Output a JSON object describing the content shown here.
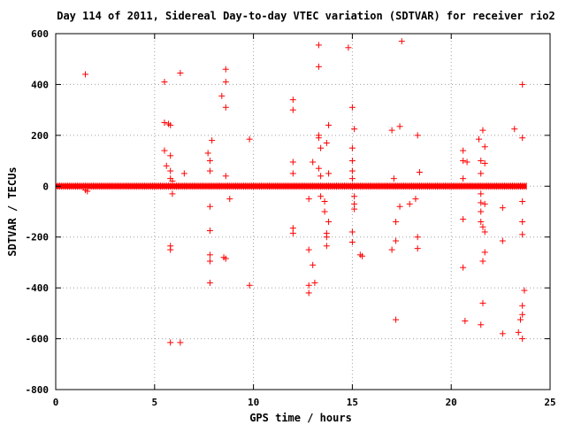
{
  "chart_data": {
    "type": "scatter",
    "title": "Day 114 of 2011, Sidereal Day-to-day VTEC variation (SDTVAR) for receiver rio2",
    "xlabel": "GPS time / hours",
    "ylabel": "SDTVAR / TECUs",
    "xlim": [
      0,
      25
    ],
    "ylim": [
      -800,
      600
    ],
    "x_ticks": [
      0,
      5,
      10,
      15,
      20,
      25
    ],
    "y_ticks": [
      -800,
      -600,
      -400,
      -200,
      0,
      200,
      400,
      600
    ],
    "grid": true,
    "marker": "plus",
    "colors": {
      "series": "#ff0000",
      "grid": "#a0a0a0",
      "axis": "#000000"
    },
    "baseline_band": {
      "x_start": 0,
      "x_end": 23.8,
      "y_min": -10,
      "y_max": 10
    },
    "series": [
      {
        "values": [
          [
            1.5,
            440
          ],
          [
            1.5,
            -15
          ],
          [
            1.6,
            -20
          ],
          [
            5.5,
            410
          ],
          [
            5.5,
            250
          ],
          [
            5.5,
            140
          ],
          [
            5.6,
            80
          ],
          [
            5.7,
            245
          ],
          [
            5.8,
            240
          ],
          [
            5.8,
            120
          ],
          [
            5.8,
            60
          ],
          [
            5.8,
            30
          ],
          [
            5.9,
            20
          ],
          [
            5.9,
            -30
          ],
          [
            5.8,
            -235
          ],
          [
            5.8,
            -250
          ],
          [
            5.8,
            -615
          ],
          [
            6.3,
            445
          ],
          [
            6.3,
            -615
          ],
          [
            6.5,
            50
          ],
          [
            7.7,
            130
          ],
          [
            7.8,
            100
          ],
          [
            7.8,
            60
          ],
          [
            7.9,
            180
          ],
          [
            7.8,
            -80
          ],
          [
            7.8,
            -175
          ],
          [
            7.8,
            -270
          ],
          [
            7.8,
            -295
          ],
          [
            7.8,
            -380
          ],
          [
            8.4,
            355
          ],
          [
            8.6,
            460
          ],
          [
            8.6,
            410
          ],
          [
            8.6,
            310
          ],
          [
            8.6,
            40
          ],
          [
            8.8,
            -50
          ],
          [
            8.5,
            -280
          ],
          [
            8.6,
            -285
          ],
          [
            9.8,
            185
          ],
          [
            9.8,
            -390
          ],
          [
            12.0,
            340
          ],
          [
            12.0,
            300
          ],
          [
            12.0,
            95
          ],
          [
            12.0,
            50
          ],
          [
            12.0,
            -165
          ],
          [
            12.0,
            -185
          ],
          [
            12.8,
            -50
          ],
          [
            12.8,
            -250
          ],
          [
            12.8,
            -390
          ],
          [
            12.8,
            -420
          ],
          [
            13.0,
            95
          ],
          [
            13.0,
            -310
          ],
          [
            13.1,
            -380
          ],
          [
            13.3,
            555
          ],
          [
            13.3,
            470
          ],
          [
            13.3,
            200
          ],
          [
            13.3,
            190
          ],
          [
            13.4,
            150
          ],
          [
            13.3,
            70
          ],
          [
            13.4,
            40
          ],
          [
            13.4,
            -40
          ],
          [
            13.6,
            -60
          ],
          [
            13.6,
            -100
          ],
          [
            13.8,
            240
          ],
          [
            13.7,
            170
          ],
          [
            13.8,
            50
          ],
          [
            13.8,
            -140
          ],
          [
            13.7,
            -185
          ],
          [
            13.7,
            -200
          ],
          [
            13.7,
            -235
          ],
          [
            14.8,
            545
          ],
          [
            15.0,
            310
          ],
          [
            15.1,
            225
          ],
          [
            15.0,
            150
          ],
          [
            15.0,
            100
          ],
          [
            15.0,
            60
          ],
          [
            15.0,
            30
          ],
          [
            15.1,
            -40
          ],
          [
            15.1,
            -70
          ],
          [
            15.1,
            -90
          ],
          [
            15.0,
            -180
          ],
          [
            15.0,
            -220
          ],
          [
            15.5,
            -275
          ],
          [
            15.4,
            -270
          ],
          [
            17.0,
            220
          ],
          [
            17.1,
            30
          ],
          [
            17.2,
            -140
          ],
          [
            17.0,
            -250
          ],
          [
            17.2,
            -215
          ],
          [
            17.2,
            -525
          ],
          [
            17.5,
            570
          ],
          [
            17.4,
            235
          ],
          [
            17.4,
            -80
          ],
          [
            17.9,
            -70
          ],
          [
            18.2,
            -50
          ],
          [
            18.3,
            200
          ],
          [
            18.4,
            55
          ],
          [
            18.3,
            -200
          ],
          [
            18.3,
            -245
          ],
          [
            20.6,
            140
          ],
          [
            20.6,
            100
          ],
          [
            20.6,
            30
          ],
          [
            20.6,
            -130
          ],
          [
            20.6,
            -320
          ],
          [
            20.7,
            -530
          ],
          [
            20.8,
            95
          ],
          [
            21.4,
            185
          ],
          [
            21.5,
            100
          ],
          [
            21.5,
            50
          ],
          [
            21.5,
            -30
          ],
          [
            21.5,
            -65
          ],
          [
            21.5,
            -100
          ],
          [
            21.5,
            -140
          ],
          [
            21.6,
            -160
          ],
          [
            21.6,
            220
          ],
          [
            21.7,
            155
          ],
          [
            21.7,
            90
          ],
          [
            21.7,
            -70
          ],
          [
            21.7,
            -180
          ],
          [
            21.7,
            -260
          ],
          [
            21.6,
            -295
          ],
          [
            21.6,
            -460
          ],
          [
            21.5,
            -545
          ],
          [
            22.6,
            -85
          ],
          [
            22.6,
            -215
          ],
          [
            22.6,
            -580
          ],
          [
            23.2,
            225
          ],
          [
            23.4,
            -575
          ],
          [
            23.6,
            400
          ],
          [
            23.6,
            190
          ],
          [
            23.6,
            -60
          ],
          [
            23.6,
            -140
          ],
          [
            23.6,
            -190
          ],
          [
            23.7,
            -410
          ],
          [
            23.6,
            -470
          ],
          [
            23.6,
            -505
          ],
          [
            23.5,
            -525
          ],
          [
            23.6,
            -600
          ]
        ]
      }
    ]
  }
}
